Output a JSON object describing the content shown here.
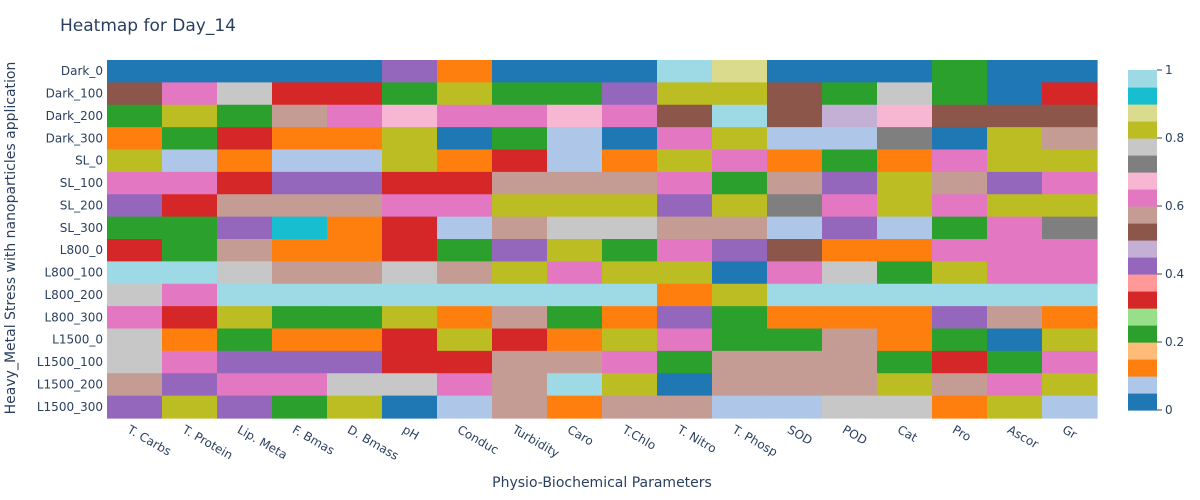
{
  "chart_data": {
    "type": "heatmap",
    "title": "Heatmap for Day_14",
    "xlabel": "Physio-Biochemical Parameters",
    "ylabel": "Heavy_Metal Stress with nanoparticles application",
    "x": [
      "T. Carbs",
      "T. Protein",
      "Lip. Meta",
      "F. Bmas",
      "D. Bmass",
      "pH",
      "Conduc",
      "Turbidity",
      "Caro",
      "T.Chlo",
      "T. Nitro",
      "T. Phosp",
      "SOD",
      "POD",
      "Cat",
      "Pro",
      "Ascor",
      "Gr"
    ],
    "y": [
      "Dark_0",
      "Dark_100",
      "Dark_200",
      "Dark_300",
      "SL_0",
      "SL_100",
      "SL_200",
      "SL_300",
      "L800_0",
      "L800_100",
      "L800_200",
      "L800_300",
      "L1500_0",
      "L1500_100",
      "L1500_200",
      "L1500_300"
    ],
    "z": [
      [
        0.0,
        0.0,
        0.0,
        0.0,
        0.0,
        0.42,
        0.1,
        0.0,
        0.0,
        0.02,
        0.95,
        0.88,
        0.0,
        0.0,
        0.0,
        0.22,
        0.02,
        0.0
      ],
      [
        0.52,
        0.62,
        0.75,
        0.3,
        0.32,
        0.22,
        0.83,
        0.2,
        0.24,
        0.43,
        0.82,
        0.83,
        0.53,
        0.2,
        0.75,
        0.22,
        0.01,
        0.3
      ],
      [
        0.2,
        0.83,
        0.2,
        0.58,
        0.63,
        0.66,
        0.61,
        0.64,
        0.68,
        0.64,
        0.52,
        0.95,
        0.5,
        0.45,
        0.67,
        0.5,
        0.52,
        0.52
      ],
      [
        0.1,
        0.22,
        0.3,
        0.12,
        0.1,
        0.83,
        0.0,
        0.2,
        0.05,
        0.0,
        0.63,
        0.83,
        0.05,
        0.05,
        0.74,
        0.0,
        0.84,
        0.58
      ],
      [
        0.84,
        0.05,
        0.12,
        0.05,
        0.05,
        0.84,
        0.1,
        0.3,
        0.05,
        0.12,
        0.84,
        0.62,
        0.1,
        0.2,
        0.1,
        0.63,
        0.84,
        0.84
      ],
      [
        0.64,
        0.64,
        0.3,
        0.4,
        0.4,
        0.3,
        0.3,
        0.55,
        0.55,
        0.58,
        0.62,
        0.2,
        0.57,
        0.42,
        0.83,
        0.55,
        0.4,
        0.64
      ],
      [
        0.42,
        0.3,
        0.55,
        0.55,
        0.55,
        0.64,
        0.62,
        0.8,
        0.84,
        0.84,
        0.42,
        0.83,
        0.73,
        0.62,
        0.84,
        0.62,
        0.8,
        0.84
      ],
      [
        0.2,
        0.2,
        0.4,
        0.9,
        0.1,
        0.3,
        0.05,
        0.55,
        0.75,
        0.75,
        0.55,
        0.58,
        0.05,
        0.42,
        0.05,
        0.2,
        0.63,
        0.73
      ],
      [
        0.3,
        0.2,
        0.55,
        0.12,
        0.1,
        0.3,
        0.2,
        0.42,
        0.84,
        0.2,
        0.62,
        0.4,
        0.52,
        0.1,
        0.1,
        0.64,
        0.62,
        0.62
      ],
      [
        0.98,
        0.98,
        0.75,
        0.55,
        0.55,
        0.75,
        0.55,
        0.84,
        0.62,
        0.84,
        0.84,
        0.0,
        0.62,
        0.75,
        0.2,
        0.84,
        0.64,
        0.64
      ],
      [
        0.75,
        0.62,
        0.98,
        0.98,
        0.98,
        0.98,
        0.98,
        0.98,
        0.98,
        0.98,
        0.12,
        0.84,
        0.98,
        0.98,
        0.98,
        0.98,
        0.98,
        0.98
      ],
      [
        0.62,
        0.3,
        0.84,
        0.2,
        0.2,
        0.84,
        0.1,
        0.58,
        0.2,
        0.1,
        0.42,
        0.2,
        0.1,
        0.12,
        0.1,
        0.42,
        0.58,
        0.1
      ],
      [
        0.75,
        0.12,
        0.2,
        0.1,
        0.12,
        0.3,
        0.84,
        0.3,
        0.1,
        0.84,
        0.62,
        0.2,
        0.2,
        0.58,
        0.12,
        0.2,
        0.0,
        0.84
      ],
      [
        0.75,
        0.64,
        0.42,
        0.42,
        0.42,
        0.3,
        0.3,
        0.55,
        0.55,
        0.62,
        0.2,
        0.55,
        0.55,
        0.55,
        0.2,
        0.3,
        0.2,
        0.64
      ],
      [
        0.55,
        0.42,
        0.64,
        0.62,
        0.75,
        0.75,
        0.64,
        0.55,
        0.98,
        0.84,
        0.0,
        0.58,
        0.55,
        0.55,
        0.8,
        0.55,
        0.62,
        0.8
      ],
      [
        0.42,
        0.84,
        0.42,
        0.2,
        0.84,
        0.0,
        0.05,
        0.55,
        0.1,
        0.58,
        0.55,
        0.05,
        0.05,
        0.75,
        0.75,
        0.1,
        0.84,
        0.05
      ]
    ],
    "zmin": 0,
    "zmax": 1,
    "colorscale": [
      "#1f77b4",
      "#aec7e8",
      "#ff7f0e",
      "#ffbb78",
      "#2ca02c",
      "#98df8a",
      "#d62728",
      "#ff9896",
      "#9467bd",
      "#c5b0d5",
      "#8c564b",
      "#c49c94",
      "#e377c2",
      "#f7b6d2",
      "#7f7f7f",
      "#c7c7c7",
      "#bcbd22",
      "#dbdb8d",
      "#17becf",
      "#9edae5"
    ],
    "colorbar": {
      "ticks": [
        "0",
        "0.2",
        "0.4",
        "0.6",
        "0.8",
        "1"
      ]
    }
  }
}
